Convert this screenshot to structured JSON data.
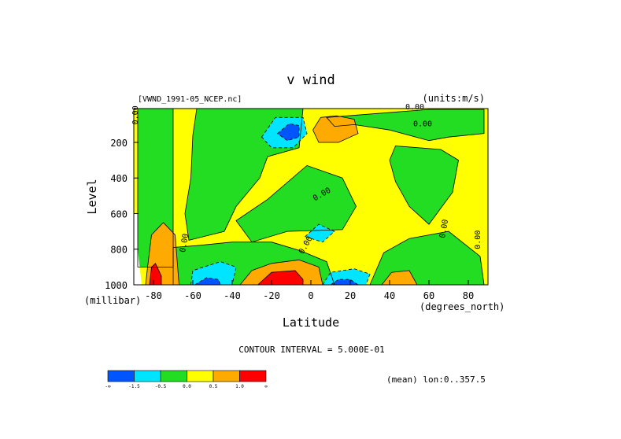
{
  "chart_data": {
    "type": "heatmap",
    "title": "v wind",
    "file_label": "[VWND_1991-05_NCEP.nc]",
    "units_label": "(units:m/s)",
    "ylabel": "Level",
    "yunit": "(millibar)",
    "xlabel": "Latitude",
    "xunit": "(degrees_north)",
    "xlim": [
      -90,
      90
    ],
    "ylim": [
      1000,
      10
    ],
    "x_ticks": [
      {
        "value": -80,
        "label": "-80"
      },
      {
        "value": -60,
        "label": "-60"
      },
      {
        "value": -40,
        "label": "-40"
      },
      {
        "value": -20,
        "label": "-20"
      },
      {
        "value": 0,
        "label": "0"
      },
      {
        "value": 20,
        "label": "20"
      },
      {
        "value": 40,
        "label": "40"
      },
      {
        "value": 60,
        "label": "60"
      },
      {
        "value": 80,
        "label": "80"
      }
    ],
    "y_ticks": [
      {
        "value": 200,
        "label": "200"
      },
      {
        "value": 400,
        "label": "400"
      },
      {
        "value": 600,
        "label": "600"
      },
      {
        "value": 800,
        "label": "800"
      },
      {
        "value": 1000,
        "label": "1000"
      }
    ],
    "contour_interval_text": "CONTOUR INTERVAL = 5.000E-01",
    "mean_text": "(mean) lon:0..357.5",
    "zero_labels": [
      "0.00",
      "0.00",
      "0.00",
      "0.00",
      "0.00",
      "0.00",
      "0.00",
      "0.00"
    ],
    "levels": [
      {
        "label": "-∞",
        "color": "#0055ff"
      },
      {
        "label": "-1.5",
        "color": "#00e5ff"
      },
      {
        "label": "-0.5",
        "color": "#22dd22"
      },
      {
        "label": "0.0",
        "color": "#ffff00"
      },
      {
        "label": "0.5",
        "color": "#ffaa00"
      },
      {
        "label": "1.0",
        "color": "#ff0000"
      },
      {
        "label": "∞",
        "color": null
      }
    ],
    "regions": [
      {
        "level": "-0.5",
        "color": "#22dd22",
        "points": [
          [
            -88,
            10
          ],
          [
            -70,
            10
          ],
          [
            -70,
            900
          ],
          [
            -88,
            900
          ]
        ]
      },
      {
        "level": "-0.5",
        "color": "#22dd22",
        "points": [
          [
            -58,
            10
          ],
          [
            -4,
            10
          ],
          [
            -6,
            230
          ],
          [
            -22,
            280
          ],
          [
            -26,
            400
          ],
          [
            -38,
            560
          ],
          [
            -44,
            700
          ],
          [
            -62,
            750
          ],
          [
            -64,
            600
          ],
          [
            -61,
            400
          ],
          [
            -60,
            160
          ]
        ]
      },
      {
        "level": "-0.5",
        "color": "#22dd22",
        "points": [
          [
            8,
            60
          ],
          [
            60,
            15
          ],
          [
            88,
            15
          ],
          [
            88,
            150
          ],
          [
            70,
            170
          ],
          [
            60,
            190
          ],
          [
            40,
            130
          ],
          [
            22,
            100
          ],
          [
            12,
            110
          ]
        ]
      },
      {
        "level": "-0.5",
        "color": "#22dd22",
        "points": [
          [
            43,
            220
          ],
          [
            66,
            240
          ],
          [
            75,
            300
          ],
          [
            72,
            480
          ],
          [
            60,
            660
          ],
          [
            50,
            560
          ],
          [
            43,
            420
          ],
          [
            40,
            300
          ]
        ]
      },
      {
        "level": "-0.5",
        "color": "#22dd22",
        "points": [
          [
            -38,
            640
          ],
          [
            -22,
            520
          ],
          [
            -2,
            330
          ],
          [
            16,
            400
          ],
          [
            23,
            560
          ],
          [
            16,
            690
          ],
          [
            -12,
            700
          ],
          [
            -30,
            760
          ]
        ]
      },
      {
        "level": "-0.5",
        "color": "#22dd22",
        "points": [
          [
            -70,
            790
          ],
          [
            -58,
            780
          ],
          [
            -40,
            760
          ],
          [
            -20,
            760
          ],
          [
            -5,
            810
          ],
          [
            8,
            870
          ],
          [
            12,
            1000
          ],
          [
            -70,
            1000
          ]
        ]
      },
      {
        "level": "-0.5",
        "color": "#22dd22",
        "points": [
          [
            30,
            1000
          ],
          [
            37,
            820
          ],
          [
            50,
            740
          ],
          [
            70,
            700
          ],
          [
            86,
            840
          ],
          [
            88,
            1000
          ]
        ]
      },
      {
        "level": "-1.5",
        "color": "#00e5ff",
        "points": [
          [
            -25,
            170
          ],
          [
            -18,
            60
          ],
          [
            -4,
            60
          ],
          [
            -2,
            150
          ],
          [
            -9,
            230
          ],
          [
            -20,
            230
          ]
        ]
      },
      {
        "level": "-1.5",
        "color": "#00e5ff",
        "points": [
          [
            -3,
            730
          ],
          [
            4,
            660
          ],
          [
            12,
            700
          ],
          [
            6,
            760
          ]
        ]
      },
      {
        "level": "-1.5",
        "color": "#00e5ff",
        "points": [
          [
            -61,
            1000
          ],
          [
            -60,
            920
          ],
          [
            -46,
            870
          ],
          [
            -38,
            900
          ],
          [
            -40,
            1000
          ]
        ]
      },
      {
        "level": "-1.5",
        "color": "#00e5ff",
        "points": [
          [
            6,
            1000
          ],
          [
            10,
            930
          ],
          [
            22,
            910
          ],
          [
            30,
            940
          ],
          [
            28,
            1000
          ]
        ]
      },
      {
        "level": "-inf",
        "color": "#0055ff",
        "points": [
          [
            -17,
            150
          ],
          [
            -11,
            95
          ],
          [
            -6,
            105
          ],
          [
            -6,
            170
          ],
          [
            -12,
            190
          ]
        ]
      },
      {
        "level": "-inf",
        "color": "#0055ff",
        "points": [
          [
            -59,
            1000
          ],
          [
            -53,
            960
          ],
          [
            -47,
            970
          ],
          [
            -46,
            1000
          ]
        ]
      },
      {
        "level": "-inf",
        "color": "#0055ff",
        "points": [
          [
            10,
            1000
          ],
          [
            14,
            970
          ],
          [
            20,
            970
          ],
          [
            24,
            1000
          ]
        ]
      },
      {
        "level": "0.5",
        "color": "#ffaa00",
        "points": [
          [
            1,
            130
          ],
          [
            5,
            60
          ],
          [
            13,
            50
          ],
          [
            22,
            70
          ],
          [
            24,
            150
          ],
          [
            14,
            200
          ],
          [
            4,
            200
          ]
        ]
      },
      {
        "level": "0.5",
        "color": "#ffaa00",
        "points": [
          [
            -83,
            900
          ],
          [
            -81,
            720
          ],
          [
            -75,
            650
          ],
          [
            -69,
            720
          ],
          [
            -67,
            1000
          ],
          [
            -84,
            1000
          ]
        ]
      },
      {
        "level": "0.5",
        "color": "#ffaa00",
        "points": [
          [
            -36,
            1000
          ],
          [
            -30,
            920
          ],
          [
            -20,
            880
          ],
          [
            -6,
            860
          ],
          [
            4,
            900
          ],
          [
            6,
            1000
          ]
        ]
      },
      {
        "level": "0.5",
        "color": "#ffaa00",
        "points": [
          [
            36,
            1000
          ],
          [
            41,
            930
          ],
          [
            50,
            920
          ],
          [
            54,
            1000
          ]
        ]
      },
      {
        "level": "1.0",
        "color": "#ff0000",
        "points": [
          [
            -27,
            1000
          ],
          [
            -20,
            930
          ],
          [
            -8,
            920
          ],
          [
            -4,
            970
          ],
          [
            -4,
            1000
          ]
        ]
      },
      {
        "level": "1.0",
        "color": "#ff0000",
        "points": [
          [
            -82,
            1000
          ],
          [
            -81,
            900
          ],
          [
            -79,
            880
          ],
          [
            -76,
            950
          ],
          [
            -76,
            1000
          ]
        ]
      },
      {
        "level": "missing",
        "color": "#ffffff",
        "points": [
          [
            -90,
            600
          ],
          [
            -88,
            600
          ],
          [
            -88,
            800
          ],
          [
            -86,
            1000
          ],
          [
            -90,
            1000
          ]
        ]
      }
    ]
  }
}
